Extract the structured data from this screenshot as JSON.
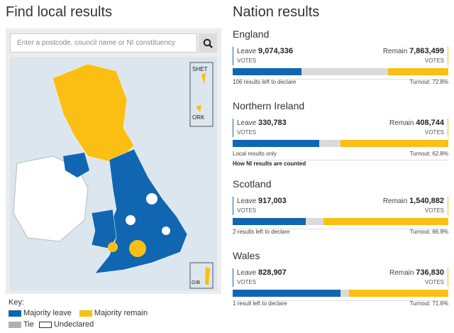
{
  "left": {
    "title": "Find local results",
    "search_placeholder": "Enter a postcode, council name or NI constituency",
    "map_labels": {
      "shet": "SHET",
      "ork": "ORK",
      "gib": "GIB"
    },
    "key": {
      "title": "Key:",
      "leave": "Majority leave",
      "remain": "Majority remain",
      "tie": "Tie",
      "undeclared": "Undeclared"
    }
  },
  "colors": {
    "leave": "#1066b1",
    "remain": "#fbbf13",
    "tie": "#b0b0b0",
    "undeclared": "#ffffff"
  },
  "right": {
    "title": "Nation results"
  },
  "nations": [
    {
      "name": "England",
      "leave_label": "Leave",
      "leave": "9,074,336",
      "remain_label": "Remain",
      "remain": "7,863,499",
      "votes": "VOTES",
      "status": "106 results left to declare",
      "turnout": "Turnout: 72.8%",
      "leave_pct": 32,
      "remain_pct": 28
    },
    {
      "name": "Northern Ireland",
      "leave_label": "Leave",
      "leave": "330,783",
      "remain_label": "Remain",
      "remain": "408,744",
      "votes": "VOTES",
      "status": "Local results only",
      "turnout": "Turnout: 62.8%",
      "link": "How NI results are counted",
      "leave_pct": 40,
      "remain_pct": 50
    },
    {
      "name": "Scotland",
      "leave_label": "Leave",
      "leave": "917,003",
      "remain_label": "Remain",
      "remain": "1,540,882",
      "votes": "VOTES",
      "status": "2 results left to declare",
      "turnout": "Turnout: 66.9%",
      "leave_pct": 34,
      "remain_pct": 58
    },
    {
      "name": "Wales",
      "leave_label": "Leave",
      "leave": "828,907",
      "remain_label": "Remain",
      "remain": "736,830",
      "votes": "VOTES",
      "status": "1 result left to declare",
      "turnout": "Turnout: 71.6%",
      "leave_pct": 50,
      "remain_pct": 46
    }
  ]
}
